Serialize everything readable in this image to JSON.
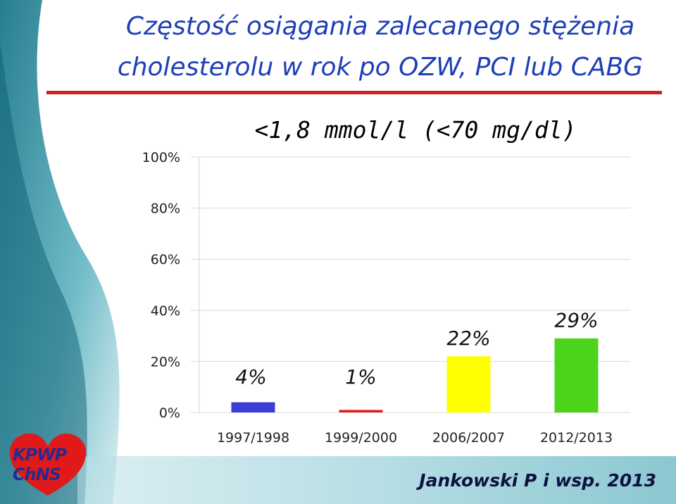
{
  "slide": {
    "title_line1": "Częstość osiągania zalecanego stężenia",
    "title_line2": "cholesterolu w rok po OZW, PCI lub CABG",
    "logo_line1": "KPWP",
    "logo_line2": "ChNS",
    "source": "Jankowski P i wsp. 2013",
    "colors": {
      "title": "#1f3fb5",
      "rule": "#d21f1f",
      "teal": "#2b8e9c"
    }
  },
  "chart_data": {
    "type": "bar",
    "title": "<1,8 mmol/l (<70 mg/dl)",
    "categories": [
      "1997/1998",
      "1999/2000",
      "2006/2007",
      "2012/2013"
    ],
    "values": [
      4,
      1,
      22,
      29
    ],
    "data_labels": [
      "4%",
      "1%",
      "22%",
      "29%"
    ],
    "bar_colors": [
      "#3b3bd6",
      "#e02020",
      "#ffff00",
      "#4cd41a"
    ],
    "yticks": [
      "0%",
      "20%",
      "40%",
      "60%",
      "80%",
      "100%"
    ],
    "ylim": [
      0,
      100
    ],
    "xlabel": "",
    "ylabel": "",
    "grid": true,
    "legend": "none"
  }
}
